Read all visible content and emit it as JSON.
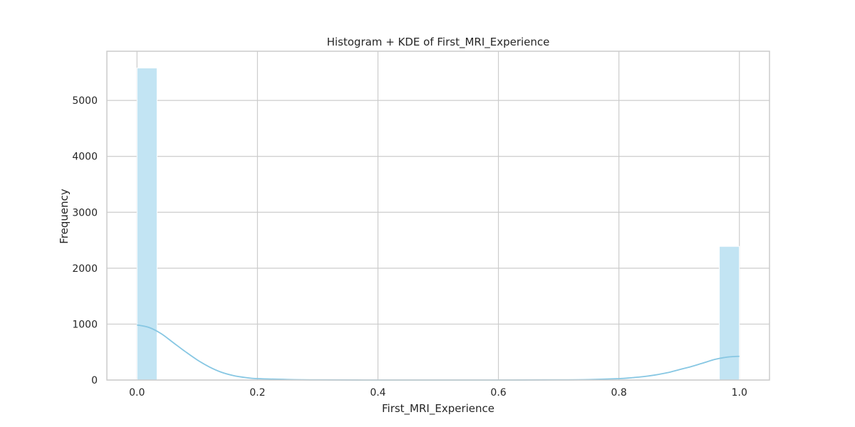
{
  "chart_data": {
    "type": "histogram",
    "title": "Histogram + KDE of First_MRI_Experience",
    "xlabel": "First_MRI_Experience",
    "ylabel": "Frequency",
    "xlim": [
      -0.05,
      1.05
    ],
    "ylim": [
      0,
      5880
    ],
    "xticks": [
      "0.0",
      "0.2",
      "0.4",
      "0.6",
      "0.8",
      "1.0"
    ],
    "yticks": [
      "0",
      "1000",
      "2000",
      "3000",
      "4000",
      "5000"
    ],
    "grid": true,
    "bins": [
      {
        "x0": 0.0,
        "x1": 0.0333,
        "count": 5580
      },
      {
        "x0": 0.9667,
        "x1": 1.0,
        "count": 2390
      }
    ],
    "kde": {
      "x": [
        0.0,
        0.02,
        0.04,
        0.06,
        0.08,
        0.1,
        0.12,
        0.14,
        0.16,
        0.18,
        0.2,
        0.25,
        0.3,
        0.4,
        0.5,
        0.6,
        0.7,
        0.75,
        0.8,
        0.82,
        0.84,
        0.86,
        0.88,
        0.9,
        0.92,
        0.94,
        0.96,
        0.98,
        1.0
      ],
      "y": [
        985,
        940,
        830,
        670,
        510,
        360,
        235,
        140,
        80,
        45,
        25,
        10,
        3,
        0,
        0,
        0,
        3,
        8,
        25,
        40,
        60,
        90,
        130,
        185,
        240,
        305,
        370,
        410,
        425
      ]
    },
    "color": "#87ceeb"
  }
}
